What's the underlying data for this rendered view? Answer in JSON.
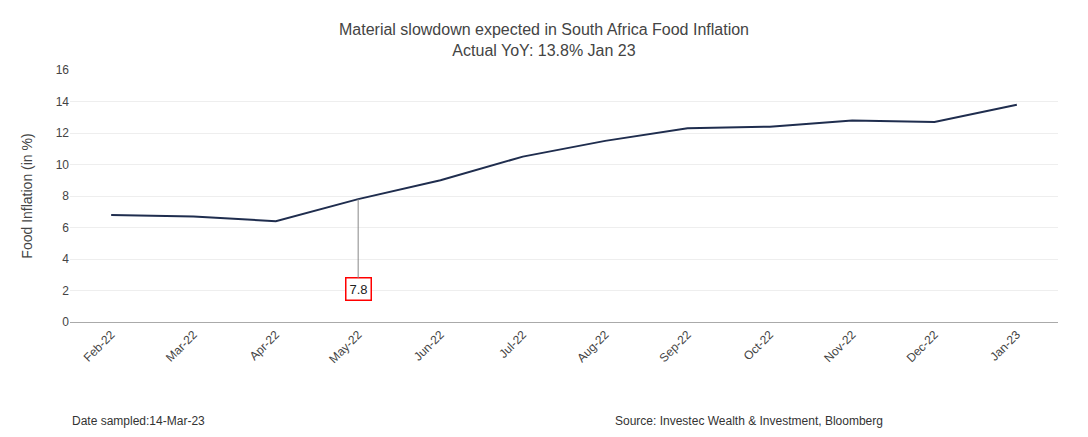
{
  "chart_data": {
    "type": "line",
    "title": "Material slowdown expected in South Africa Food Inflation",
    "subtitle": "Actual YoY: 13.8% Jan 23",
    "ylabel": "Food Inflation (in %)",
    "categories": [
      "Feb-22",
      "Mar-22",
      "Apr-22",
      "May-22",
      "Jun-22",
      "Jul-22",
      "Aug-22",
      "Sep-22",
      "Oct-22",
      "Nov-22",
      "Dec-22",
      "Jan-23"
    ],
    "values": [
      6.8,
      6.7,
      6.4,
      7.8,
      9.0,
      10.5,
      11.5,
      12.3,
      12.4,
      12.8,
      12.7,
      13.8
    ],
    "color": "#1f2d4e",
    "ylim": [
      0,
      16
    ],
    "yticks": [
      0,
      2,
      4,
      6,
      8,
      10,
      12,
      14,
      16
    ],
    "grid": true,
    "annotations": [
      {
        "text": "7.8",
        "category": "May-22",
        "color": "red"
      }
    ],
    "footnotes": [
      "Date sampled:14-Mar-23",
      "Source: Investec Wealth & Investment, Bloomberg"
    ]
  }
}
